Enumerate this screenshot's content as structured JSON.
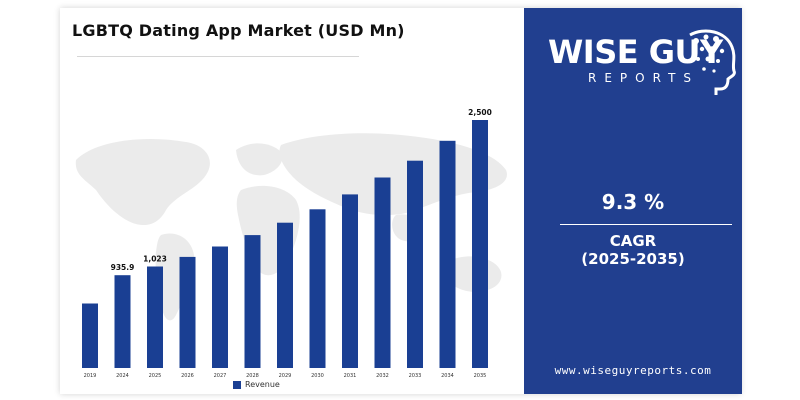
{
  "chart_data": {
    "type": "bar",
    "title": "LGBTQ Dating App Market (USD Mn)",
    "categories": [
      "2019",
      "2024",
      "2025",
      "2026",
      "2027",
      "2028",
      "2029",
      "2030",
      "2031",
      "2032",
      "2033",
      "2034",
      "2035"
    ],
    "series": [
      {
        "name": "Revenue",
        "values": [
          650,
          935.9,
          1023,
          1120,
          1225,
          1340,
          1465,
          1600,
          1750,
          1920,
          2090,
          2290,
          2500
        ]
      }
    ],
    "data_labels": [
      "",
      "935.9",
      "1,023",
      "",
      "",
      "",
      "",
      "",
      "",
      "",
      "",
      "",
      "2,500"
    ],
    "ylim": [
      0,
      2500
    ],
    "grid": false,
    "legend_position": "bottom",
    "colors": {
      "bar": "#1a3f93",
      "panel": "#213f8f",
      "map": "#e9e9e9"
    }
  },
  "brand": {
    "name": "WISE GUY",
    "sub": "REPORTS",
    "website": "www.wiseguyreports.com"
  },
  "cagr": {
    "value": "9.3 %",
    "label": "CAGR",
    "period": "(2025-2035)"
  }
}
